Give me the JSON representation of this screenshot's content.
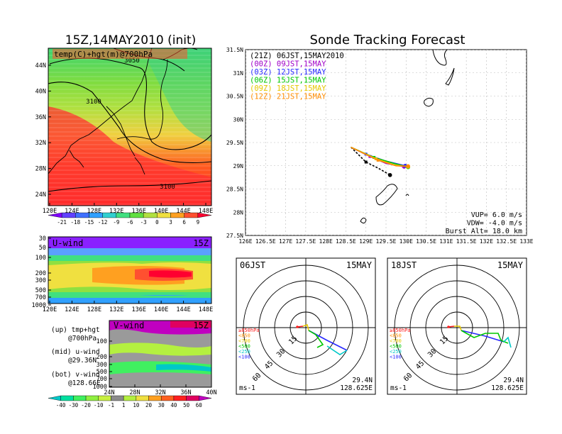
{
  "left_title": "15Z,14MAY2010 (init)",
  "main_title": "Sonde Tracking Forecast",
  "colors": {
    "t00": "#000000",
    "t03": "#a000c8",
    "t06": "#2828ff",
    "t09": "#00c800",
    "t12": "#e6c800",
    "t15": "#ff8c00"
  },
  "chart_data": [
    {
      "type": "heatmap",
      "name_label": "temp(C)+hgt(m)@700hPa",
      "x_ticks": [
        "120E",
        "124E",
        "128E",
        "132E",
        "136E",
        "140E",
        "144E",
        "148E"
      ],
      "y_ticks": [
        "24N",
        "28N",
        "32N",
        "36N",
        "40N",
        "44N"
      ],
      "contour_labels": [
        "3050",
        "3100",
        "3100"
      ],
      "colorbar": {
        "labels": [
          "-21",
          "-18",
          "-15",
          "-12",
          "-9",
          "-6",
          "-3",
          "0",
          "3",
          "6",
          "9"
        ],
        "colors": [
          "#8000ff",
          "#6040ff",
          "#4070ff",
          "#30a0ff",
          "#30d0d0",
          "#40e080",
          "#60e040",
          "#b0e040",
          "#f0e040",
          "#ffa020",
          "#ff5030",
          "#ff0030"
        ]
      }
    },
    {
      "type": "heatmap",
      "name_label": "U-wind",
      "time_label": "15Z",
      "x_ticks": [
        "120E",
        "124E",
        "128E",
        "132E",
        "136E",
        "140E",
        "144E",
        "148E"
      ],
      "y_ticks": [
        "30",
        "50",
        "100",
        "200",
        "300",
        "500",
        "700",
        "1000"
      ]
    },
    {
      "type": "heatmap",
      "name_label": "V-wind",
      "time_label": "15Z",
      "x_ticks": [
        "24N",
        "28N",
        "32N",
        "36N",
        "40N"
      ],
      "y_ticks": [
        "100",
        "200",
        "300",
        "500",
        "700",
        "1000"
      ],
      "colorbar": {
        "labels": [
          "-40",
          "-30",
          "-20",
          "-10",
          "-1",
          "1",
          "10",
          "20",
          "30",
          "40",
          "50",
          "60"
        ],
        "colors": [
          "#00c8c8",
          "#00e0a0",
          "#40f060",
          "#90f040",
          "#c8f040",
          "#8c8c8c",
          "#b4f040",
          "#f0e040",
          "#ffa020",
          "#ff6020",
          "#ff2020",
          "#e00060",
          "#c000c0"
        ]
      }
    },
    {
      "type": "line",
      "subtitle_lines": [
        "(21Z) 06JST,15MAY2010",
        "(00Z) 09JST,15MAY",
        "(03Z) 12JST,15MAY",
        "(06Z) 15JST,15MAY",
        "(09Z) 18JST,15MAY",
        "(12Z) 21JST,15MAY"
      ],
      "x_ticks": [
        "126E",
        "126.5E",
        "127E",
        "127.5E",
        "128E",
        "128.5E",
        "129E",
        "129.5E",
        "130E",
        "130.5E",
        "131E",
        "131.5E",
        "132E",
        "132.5E",
        "133E"
      ],
      "y_ticks": [
        "27.5N",
        "28N",
        "28.5N",
        "29N",
        "29.5N",
        "30N",
        "30.5N",
        "31N",
        "31.5N"
      ],
      "xlim": [
        126,
        133
      ],
      "ylim": [
        27.5,
        31.5
      ],
      "series": [
        {
          "name": "(21Z) 06JST,15MAY2010",
          "x": [
            128.625,
            129.0,
            129.3,
            129.6
          ],
          "y": [
            29.4,
            29.08,
            28.95,
            28.8
          ]
        },
        {
          "name": "(00Z) 09JST,15MAY",
          "x": [
            128.625,
            129.1,
            129.5,
            129.95
          ],
          "y": [
            29.4,
            29.2,
            29.05,
            28.98
          ]
        },
        {
          "name": "(03Z) 12JST,15MAY",
          "x": [
            128.625,
            129.0,
            129.5,
            129.98
          ],
          "y": [
            29.4,
            29.25,
            29.1,
            29.0
          ]
        },
        {
          "name": "(06Z) 15JST,15MAY",
          "x": [
            128.625,
            129.2,
            129.7,
            130.05
          ],
          "y": [
            29.4,
            29.18,
            29.05,
            28.97
          ]
        },
        {
          "name": "(09Z) 18JST,15MAY",
          "x": [
            128.625,
            129.25,
            129.7,
            130.05
          ],
          "y": [
            29.4,
            29.15,
            29.02,
            28.98
          ]
        },
        {
          "name": "(12Z) 21JST,15MAY",
          "x": [
            128.625,
            129.3,
            129.75,
            130.05
          ],
          "y": [
            29.4,
            29.12,
            29.0,
            28.99
          ]
        }
      ],
      "params": [
        "VUP= 6.0 m/s",
        "VDW= -4.0 m/s",
        "Burst Alt= 18.0 km"
      ]
    }
  ],
  "hodographs": [
    {
      "left": "06JST",
      "right": "15MAY",
      "pos": "29.4N",
      "lon": "128.625E",
      "unit": "ms-1"
    },
    {
      "left": "18JST",
      "right": "15MAY",
      "pos": "29.4N",
      "lon": "128.625E",
      "unit": "ms-1"
    }
  ],
  "hodo_legend": [
    "≥850hPa",
    "<850",
    "<700",
    "<500",
    "<250",
    "<100"
  ],
  "hodo_ring_labels": [
    "15",
    "30",
    "45",
    "60"
  ],
  "side_notes": [
    "(up) tmp+hgt",
    "@700hPa",
    "(mid) u-wind",
    "@29.36N",
    "(bot) v-wind",
    "@128.66E"
  ]
}
